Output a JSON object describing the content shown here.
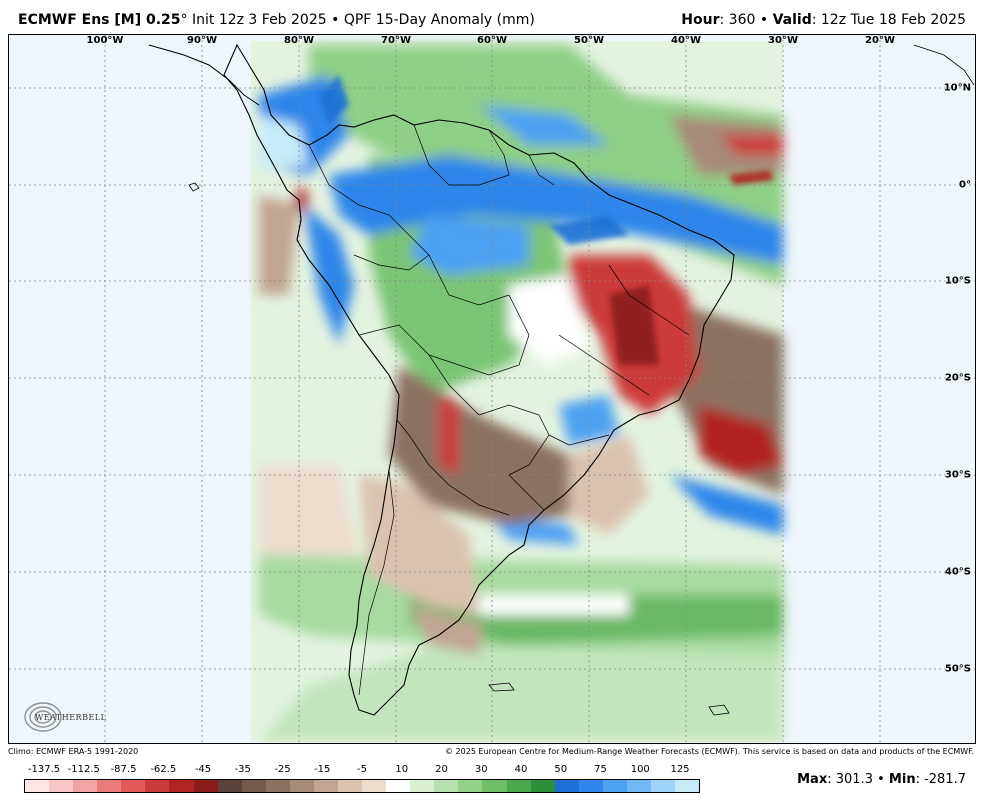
{
  "header": {
    "model": "ECMWF Ens [M] 0.25",
    "degree": "°",
    "init": "Init 12z 3 Feb 2025",
    "bullet": "•",
    "product": "QPF 15-Day Anomaly (mm)",
    "hour_label": "Hour",
    "hour_value": ": 360",
    "valid_label": "Valid",
    "valid_value": ": 12z Tue 18 Feb 2025"
  },
  "map": {
    "lon_labels": [
      "100°W",
      "90°W",
      "80°W",
      "70°W",
      "60°W",
      "50°W",
      "40°W",
      "30°W",
      "20°W"
    ],
    "lat_labels": [
      "10°N",
      "0°",
      "10°S",
      "20°S",
      "30°S",
      "40°S",
      "50°S"
    ],
    "region": "South America"
  },
  "logo": {
    "text": "WEATHERBELL",
    "icon": "weatherbell-swirl-logo"
  },
  "footer": {
    "climo": "Climo: ECMWF ERA-5 1991-2020",
    "copyright": "© 2025 European Centre for Medium-Range Weather Forecasts (ECMWF). This service is based on data and products of the ECMWF."
  },
  "colorbar": {
    "labels": [
      "-137.5",
      "-112.5",
      "-87.5",
      "-62.5",
      "-45",
      "-35",
      "-25",
      "-15",
      "-5",
      "10",
      "20",
      "30",
      "40",
      "50",
      "75",
      "100",
      "125"
    ],
    "colors": [
      "#fde6e6",
      "#f9c7c7",
      "#f3a3a3",
      "#ec7c7c",
      "#e05a5a",
      "#cc3b3b",
      "#b02424",
      "#8c1b1b",
      "#5a4238",
      "#74594c",
      "#8d7161",
      "#a88a78",
      "#c1a592",
      "#dbc2ae",
      "#ecdccd",
      "#ffffff",
      "#d8efd4",
      "#b5e0ad",
      "#92d08a",
      "#6fbf68",
      "#4aa84d",
      "#2e8f3a",
      "#1f6fd6",
      "#2f86ea",
      "#4ea0f2",
      "#72b8f5",
      "#9dd4f7",
      "#c6ecf9"
    ]
  },
  "stats": {
    "max_label": "Max",
    "max_value": ": 301.3",
    "sep": "•",
    "min_label": "Min",
    "min_value": ": -281.7"
  }
}
